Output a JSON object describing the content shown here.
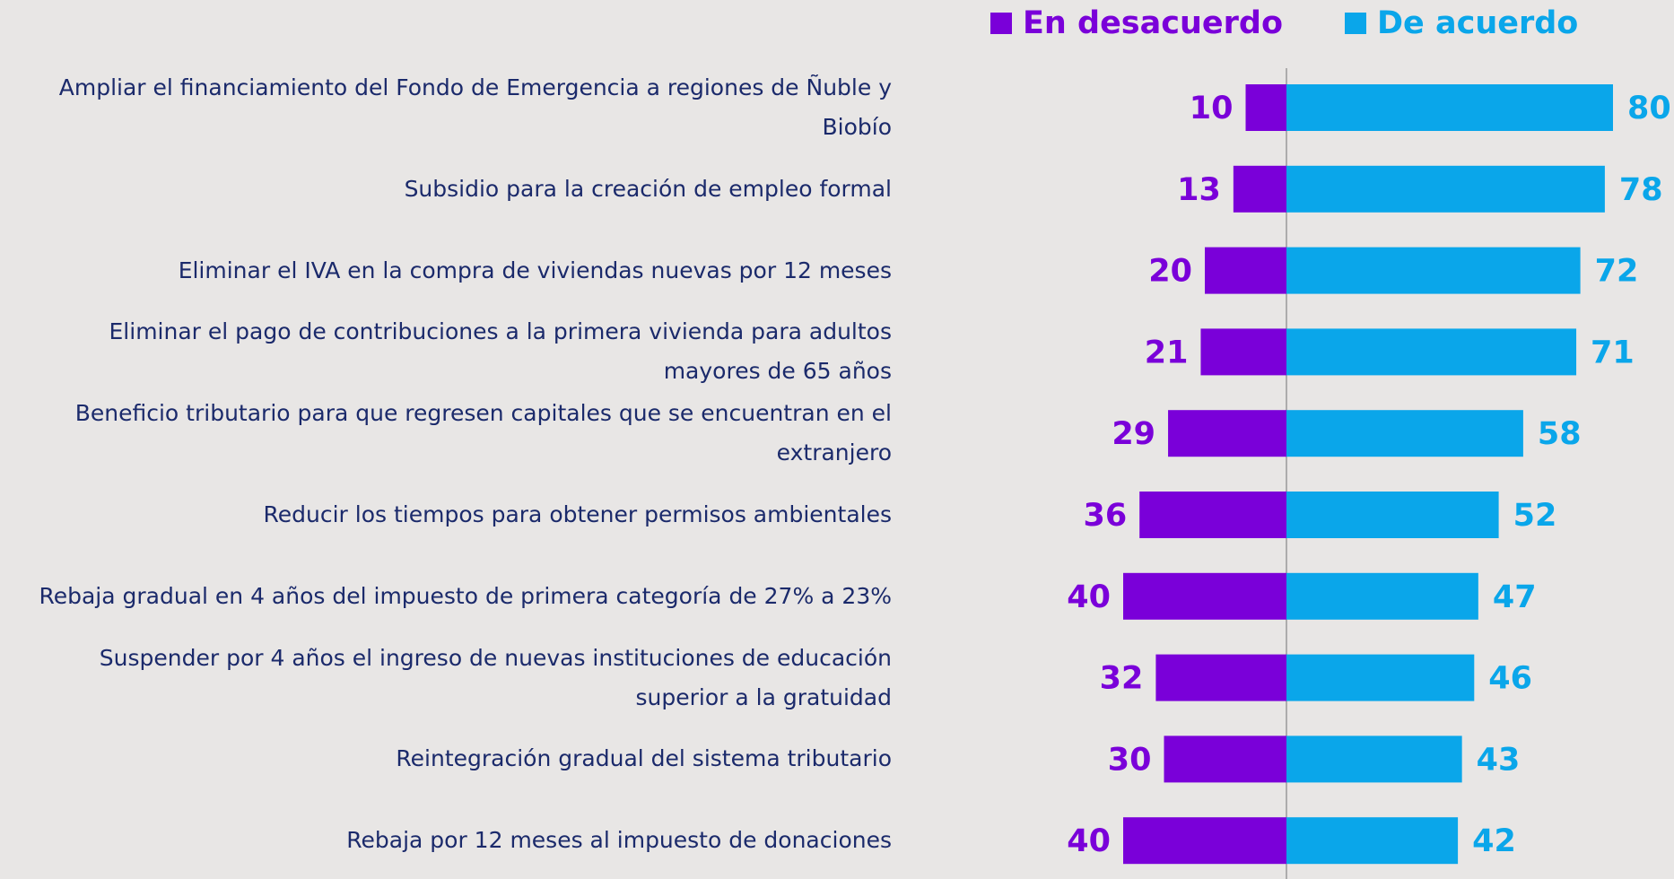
{
  "chart_data": {
    "type": "diverging-bar",
    "categories": [
      "Ampliar el financiamiento del Fondo de Emergencia a regiones de Ñuble y Biobío",
      "Subsidio para la creación de empleo formal",
      "Eliminar el IVA en la compra de viviendas nuevas por 12 meses",
      "Eliminar el pago de contribuciones a la primera vivienda para adultos mayores de 65 años",
      "Beneficio tributario para que regresen capitales que se encuentran en el extranjero",
      "Reducir los tiempos para obtener permisos ambientales",
      "Rebaja gradual en 4 años del impuesto de primera categoría de 27% a 23%",
      "Suspender por 4 años el ingreso de nuevas instituciones de educación superior a la gratuidad",
      "Reintegración gradual del sistema tributario",
      "Rebaja por 12 meses al impuesto de donaciones"
    ],
    "series": [
      {
        "name": "En desacuerdo",
        "color": "#7a00d9",
        "values": [
          10,
          13,
          20,
          21,
          29,
          36,
          40,
          32,
          30,
          40
        ]
      },
      {
        "name": "De acuerdo",
        "color": "#0aa6ea",
        "values": [
          80,
          78,
          72,
          71,
          58,
          52,
          47,
          46,
          43,
          42
        ]
      }
    ]
  }
}
